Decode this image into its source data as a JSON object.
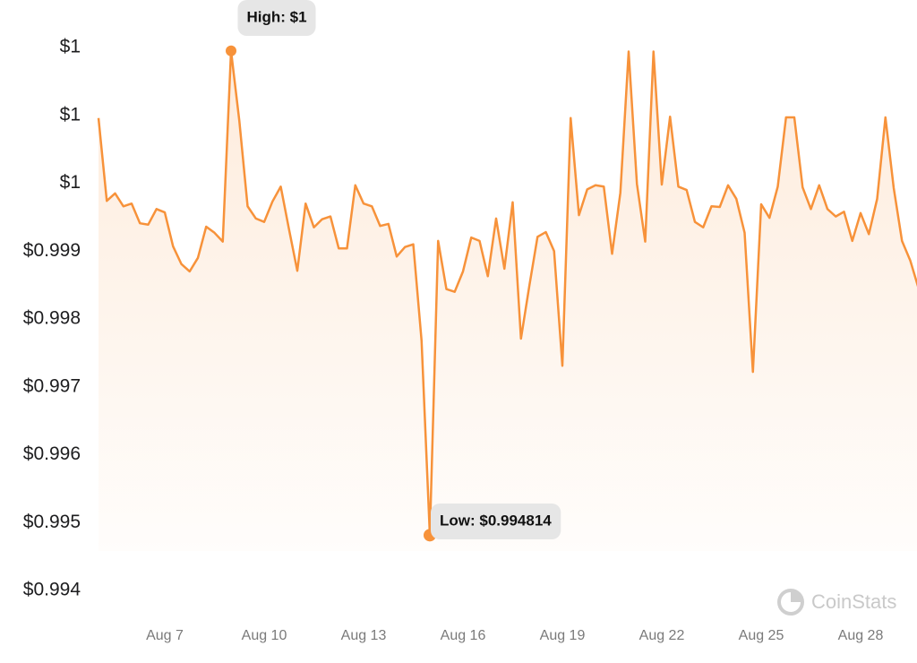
{
  "chart_data": {
    "type": "line",
    "color": "#f7923a",
    "categories": [
      null,
      null,
      null,
      null,
      null,
      null,
      null,
      null,
      "Aug 7",
      null,
      null,
      null,
      null,
      null,
      null,
      null,
      null,
      null,
      null,
      null,
      "Aug 10",
      null,
      null,
      null,
      null,
      null,
      null,
      null,
      null,
      null,
      null,
      null,
      "Aug 13",
      null,
      null,
      null,
      null,
      null,
      null,
      null,
      null,
      null,
      null,
      null,
      "Aug 16",
      null,
      null,
      null,
      null,
      null,
      null,
      null,
      null,
      null,
      null,
      null,
      "Aug 19",
      null,
      null,
      null,
      null,
      null,
      null,
      null,
      null,
      null,
      null,
      null,
      "Aug 22",
      null,
      null,
      null,
      null,
      null,
      null,
      null,
      null,
      null,
      null,
      null,
      "Aug 25",
      null,
      null,
      null,
      null,
      null,
      null,
      null,
      null,
      null,
      null,
      null,
      "Aug 28",
      null,
      null,
      null,
      null,
      null,
      null,
      null
    ],
    "values": [
      1.00096,
      0.99974,
      0.99985,
      0.99966,
      0.9997,
      0.99941,
      0.99939,
      0.99962,
      0.99957,
      0.99907,
      0.99881,
      0.9987,
      0.9989,
      0.99936,
      0.99927,
      0.99914,
      1.00195,
      1.00092,
      0.99966,
      0.99948,
      0.99943,
      0.99973,
      0.99995,
      0.99932,
      0.99871,
      0.9997,
      0.99935,
      0.99947,
      0.99951,
      0.99904,
      0.99904,
      0.99997,
      0.9997,
      0.99966,
      0.99937,
      0.9994,
      0.99892,
      0.99906,
      0.9991,
      0.99768,
      0.994814,
      0.99915,
      0.99844,
      0.9984,
      0.9987,
      0.9992,
      0.99915,
      0.99863,
      0.99948,
      0.99874,
      0.99972,
      0.99771,
      0.99848,
      0.99921,
      0.99928,
      0.999,
      0.99731,
      1.00096,
      0.99953,
      0.99991,
      0.99997,
      0.99995,
      0.99896,
      0.99986,
      1.00194,
      0.99999,
      0.99914,
      1.00194,
      0.99998,
      1.00098,
      0.99995,
      0.9999,
      0.99943,
      0.99935,
      0.99966,
      0.99965,
      0.99997,
      0.99977,
      0.99927,
      0.99722,
      0.99969,
      0.99949,
      0.99995,
      1.00097,
      1.00097,
      0.99994,
      0.99962,
      0.99997,
      0.99962,
      0.99951,
      0.99958,
      0.99915,
      0.99956,
      0.99925,
      0.99977,
      1.00097,
      0.99993,
      0.99915,
      0.99886,
      0.99845
    ],
    "ylim": [
      0.994,
      1.002
    ],
    "yticks": [
      {
        "value": 0.994,
        "label": "$0.994"
      },
      {
        "value": 0.995,
        "label": "$0.995"
      },
      {
        "value": 0.996,
        "label": "$0.996"
      },
      {
        "value": 0.997,
        "label": "$0.997"
      },
      {
        "value": 0.998,
        "label": "$0.998"
      },
      {
        "value": 0.999,
        "label": "$0.999"
      },
      {
        "value": 1.0,
        "label": "$1"
      },
      {
        "value": 1.001,
        "label": "$1"
      },
      {
        "value": 1.002,
        "label": "$1"
      }
    ],
    "high_label": "High: $1",
    "low_label": "Low: $0.994814",
    "watermark": "CoinStats"
  }
}
